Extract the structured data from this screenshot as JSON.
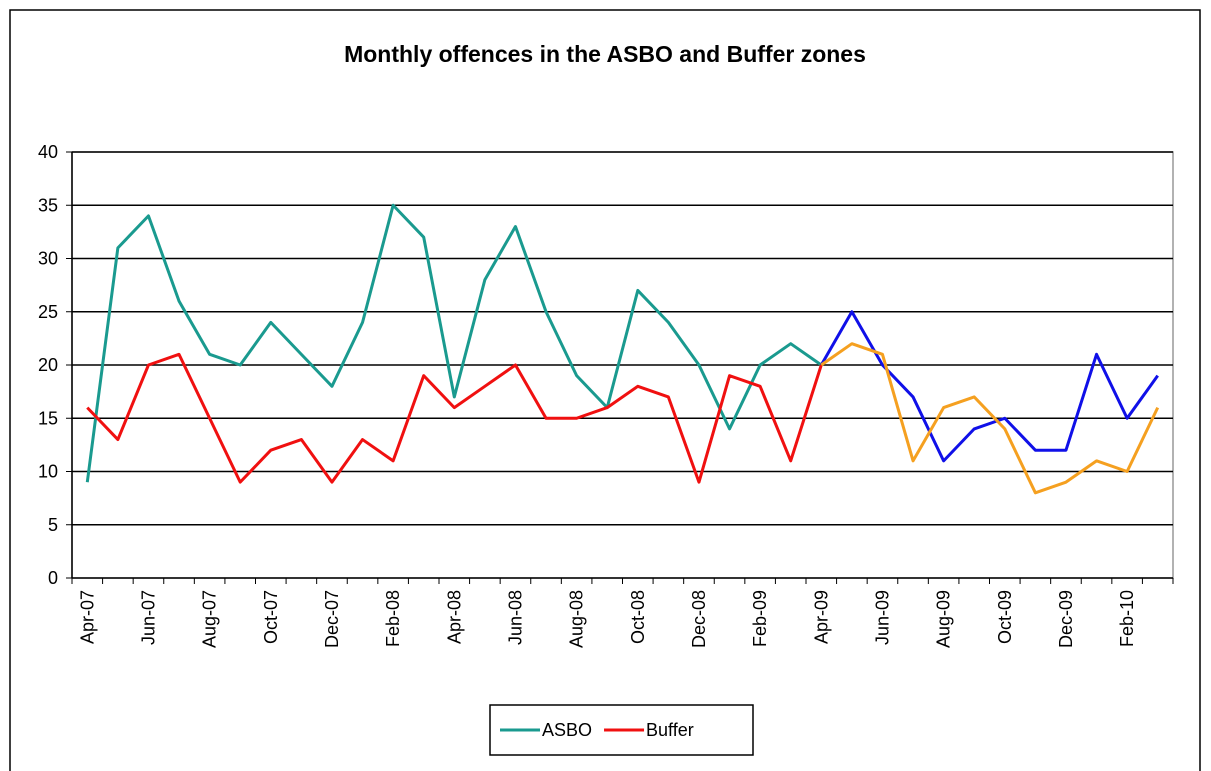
{
  "chart_data": {
    "type": "line",
    "title": "Monthly offences in the ASBO and Buffer zones",
    "categories": [
      "Apr-07",
      null,
      "Jun-07",
      null,
      "Aug-07",
      null,
      "Oct-07",
      null,
      "Dec-07",
      null,
      "Feb-08",
      null,
      "Apr-08",
      null,
      "Jun-08",
      null,
      "Aug-08",
      null,
      "Oct-08",
      null,
      "Dec-08",
      null,
      "Feb-09",
      null,
      "Apr-09",
      null,
      "Jun-09",
      null,
      "Aug-09",
      null,
      "Oct-09",
      null,
      "Dec-09",
      null,
      "Feb-10",
      null
    ],
    "series": [
      {
        "name": "ASBO",
        "color": "#1a9a8f",
        "colors": [
          "#1a9a8f",
          "#1a9a8f",
          "#1a9a8f",
          "#1a9a8f",
          "#1a9a8f",
          "#1a9a8f",
          "#1a9a8f",
          "#1a9a8f",
          "#1a9a8f",
          "#1a9a8f",
          "#1a9a8f",
          "#1a9a8f",
          "#1a9a8f",
          "#1a9a8f",
          "#1a9a8f",
          "#1a9a8f",
          "#1a9a8f",
          "#1a9a8f",
          "#1a9a8f",
          "#1a9a8f",
          "#1a9a8f",
          "#1a9a8f",
          "#1a9a8f",
          "#1a9a8f",
          "#1010e8",
          "#1010e8",
          "#1010e8",
          "#1010e8",
          "#1010e8",
          "#1010e8",
          "#1010e8",
          "#1010e8",
          "#1010e8",
          "#1010e8",
          "#1010e8",
          "#1010e8"
        ],
        "values": [
          9,
          31,
          34,
          26,
          21,
          20,
          24,
          21,
          18,
          24,
          35,
          32,
          17,
          28,
          33,
          25,
          19,
          16,
          27,
          24,
          20,
          14,
          20,
          22,
          20,
          25,
          20,
          17,
          11,
          14,
          15,
          12,
          12,
          21,
          15,
          19
        ]
      },
      {
        "name": "Buffer",
        "color": "#f01010",
        "colors": [
          "#f01010",
          "#f01010",
          "#f01010",
          "#f01010",
          "#f01010",
          "#f01010",
          "#f01010",
          "#f01010",
          "#f01010",
          "#f01010",
          "#f01010",
          "#f01010",
          "#f01010",
          "#f01010",
          "#f01010",
          "#f01010",
          "#f01010",
          "#f01010",
          "#f01010",
          "#f01010",
          "#f01010",
          "#f01010",
          "#f01010",
          "#f01010",
          "#f5a020",
          "#f5a020",
          "#f5a020",
          "#f5a020",
          "#f5a020",
          "#f5a020",
          "#f5a020",
          "#f5a020",
          "#f5a020",
          "#f5a020",
          "#f5a020",
          "#f5a020"
        ],
        "values": [
          16,
          13,
          20,
          21,
          15,
          9,
          12,
          13,
          9,
          13,
          11,
          19,
          16,
          18,
          20,
          15,
          15,
          16,
          18,
          17,
          9,
          19,
          18,
          11,
          20,
          22,
          21,
          11,
          16,
          17,
          14,
          8,
          9,
          11,
          10,
          16
        ]
      }
    ],
    "ylim": [
      0,
      40
    ],
    "yticks": [
      0,
      5,
      10,
      15,
      20,
      25,
      30,
      35,
      40
    ],
    "grid": true,
    "legend": "bottom"
  }
}
